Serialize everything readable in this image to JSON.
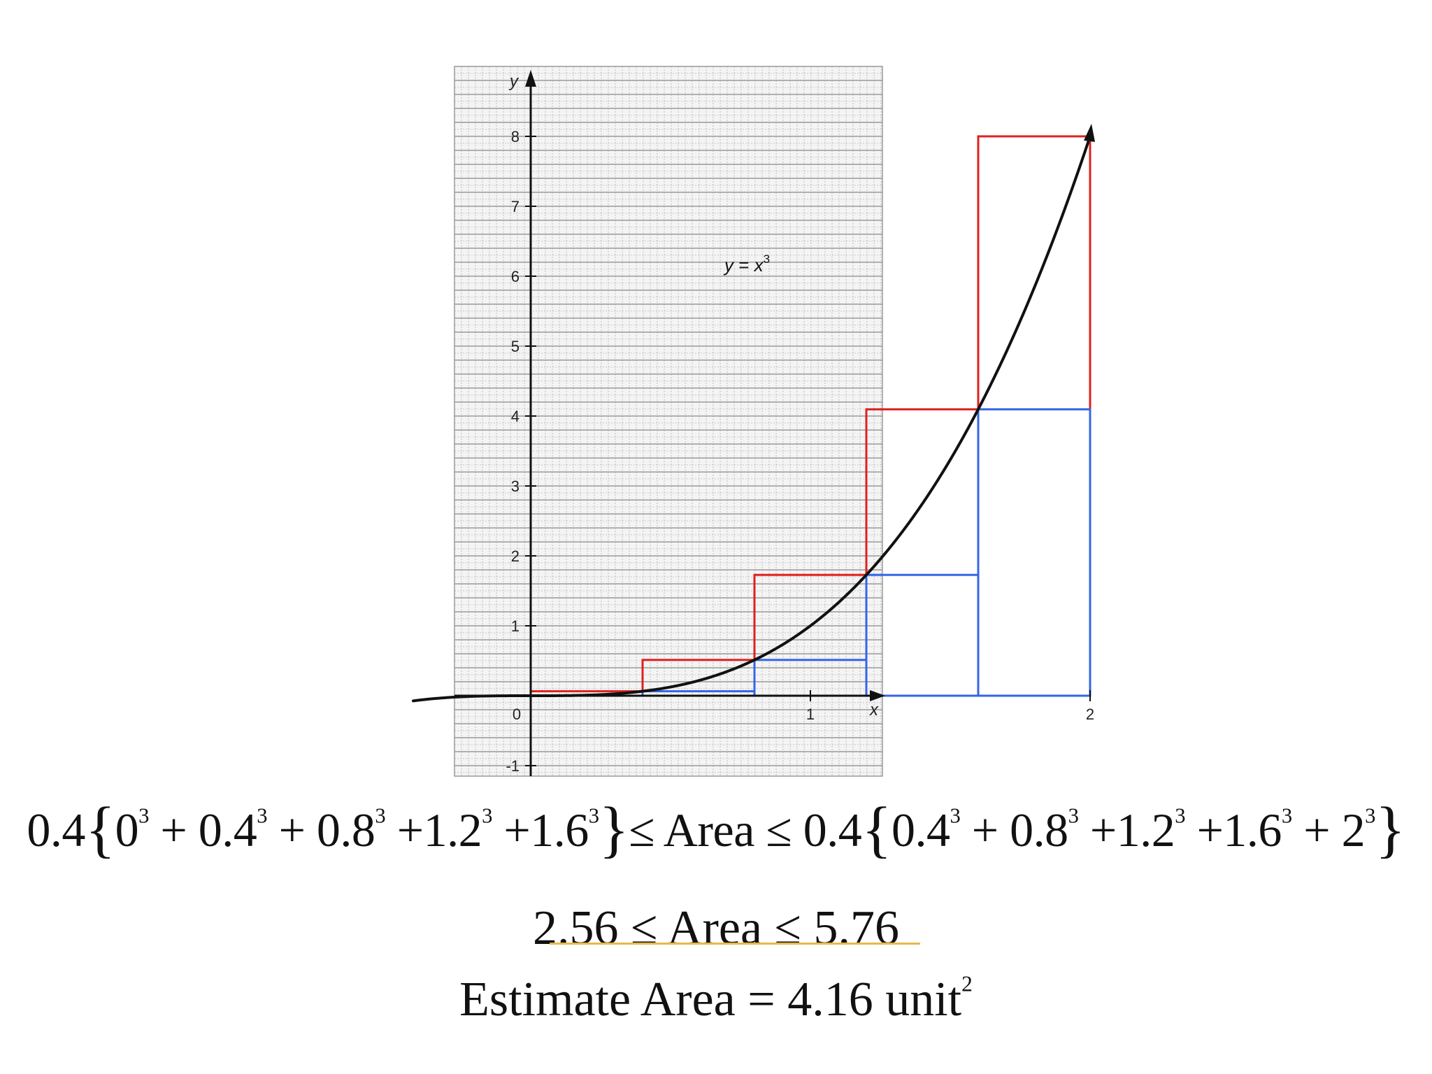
{
  "chart_data": {
    "type": "line",
    "function": "x^3",
    "curve_label": {
      "lhs": "y",
      "eq": " = ",
      "base": "x",
      "exp": "3"
    },
    "xlabel": "x",
    "ylabel": "y",
    "xlim": [
      -0.5,
      2.5
    ],
    "ylim": [
      -1,
      9
    ],
    "x_ticks": [
      {
        "value": 0,
        "label": "0"
      },
      {
        "value": 1,
        "label": "1"
      },
      {
        "value": 2,
        "label": "2"
      }
    ],
    "y_ticks": [
      {
        "value": -1,
        "label": "-1"
      },
      {
        "value": 1,
        "label": "1"
      },
      {
        "value": 2,
        "label": "2"
      },
      {
        "value": 3,
        "label": "3"
      },
      {
        "value": 4,
        "label": "4"
      },
      {
        "value": 5,
        "label": "5"
      },
      {
        "value": 6,
        "label": "6"
      },
      {
        "value": 7,
        "label": "7"
      },
      {
        "value": 8,
        "label": "8"
      }
    ],
    "grid": true,
    "series": [
      {
        "kind": "upper-rectangles",
        "color": "#e02020",
        "width": 0.4,
        "x": [
          0,
          0.4,
          0.8,
          1.2,
          1.6
        ],
        "values": [
          0.064,
          0.512,
          1.728,
          4.096,
          8
        ]
      },
      {
        "kind": "lower-rectangles",
        "color": "#3366e6",
        "width": 0.4,
        "x": [
          0,
          0.4,
          0.8,
          1.2,
          1.6
        ],
        "values": [
          0,
          0.064,
          0.512,
          1.728,
          4.096
        ]
      }
    ]
  },
  "equations": {
    "line1": {
      "prefix": "0.4",
      "lower_terms": [
        {
          "base": "0",
          "exp": "3",
          "sep": " + "
        },
        {
          "base": "0.4",
          "exp": "3",
          "sep": " + "
        },
        {
          "base": "0.8",
          "exp": "3",
          "sep": " +"
        },
        {
          "base": "1.2",
          "exp": "3",
          "sep": " +"
        },
        {
          "base": "1.6",
          "exp": "3",
          "sep": ""
        }
      ],
      "middle": "≤ Area ≤ 0.4",
      "upper_terms": [
        {
          "base": "0.4",
          "exp": "3",
          "sep": " + "
        },
        {
          "base": "0.8",
          "exp": "3",
          "sep": " +"
        },
        {
          "base": "1.2",
          "exp": "3",
          "sep": " +"
        },
        {
          "base": "1.6",
          "exp": "3",
          "sep": " + "
        },
        {
          "base": "2",
          "exp": "3",
          "sep": ""
        }
      ]
    },
    "line2": "2.56 ≤ Area ≤ 5.76",
    "line3": {
      "text": "Estimate Area = 4.16 unit",
      "exp": "2"
    }
  },
  "colors": {
    "grid": "#9a9a9a",
    "axis": "#111111",
    "underline": "#e8b84b"
  }
}
